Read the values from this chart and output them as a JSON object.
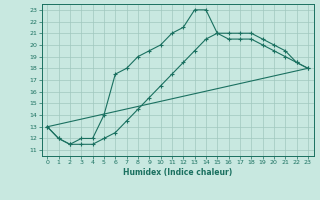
{
  "xlabel": "Humidex (Indice chaleur)",
  "bg_color": "#c8e8e0",
  "line_color": "#1a7060",
  "grid_color": "#a0c8be",
  "xlim": [
    -0.5,
    23.5
  ],
  "ylim": [
    10.5,
    23.5
  ],
  "xticks": [
    0,
    1,
    2,
    3,
    4,
    5,
    6,
    7,
    8,
    9,
    10,
    11,
    12,
    13,
    14,
    15,
    16,
    17,
    18,
    19,
    20,
    21,
    22,
    23
  ],
  "yticks": [
    11,
    12,
    13,
    14,
    15,
    16,
    17,
    18,
    19,
    20,
    21,
    22,
    23
  ],
  "line1_x": [
    0,
    1,
    2,
    3,
    4,
    5,
    6,
    7,
    8,
    9,
    10,
    11,
    12,
    13,
    14,
    15,
    16,
    17,
    18,
    19,
    20,
    21,
    22,
    23
  ],
  "line1_y": [
    13,
    12,
    11.5,
    12,
    12,
    14,
    17.5,
    18,
    19,
    19.5,
    20,
    21,
    21.5,
    23,
    23,
    21,
    20.5,
    20.5,
    20.5,
    20,
    19.5,
    19,
    18.5,
    18
  ],
  "line2_x": [
    0,
    1,
    2,
    3,
    4,
    5,
    6,
    7,
    8,
    9,
    10,
    11,
    12,
    13,
    14,
    15,
    16,
    17,
    18,
    19,
    20,
    21,
    22,
    23
  ],
  "line2_y": [
    13,
    12,
    11.5,
    11.5,
    11.5,
    12.0,
    12.5,
    13.5,
    14.5,
    15.5,
    16.5,
    17.5,
    18.5,
    19.5,
    20.5,
    21.0,
    21.0,
    21.0,
    21.0,
    20.5,
    20.0,
    19.5,
    18.5,
    18.0
  ],
  "line3_x": [
    0,
    23
  ],
  "line3_y": [
    13,
    18
  ]
}
